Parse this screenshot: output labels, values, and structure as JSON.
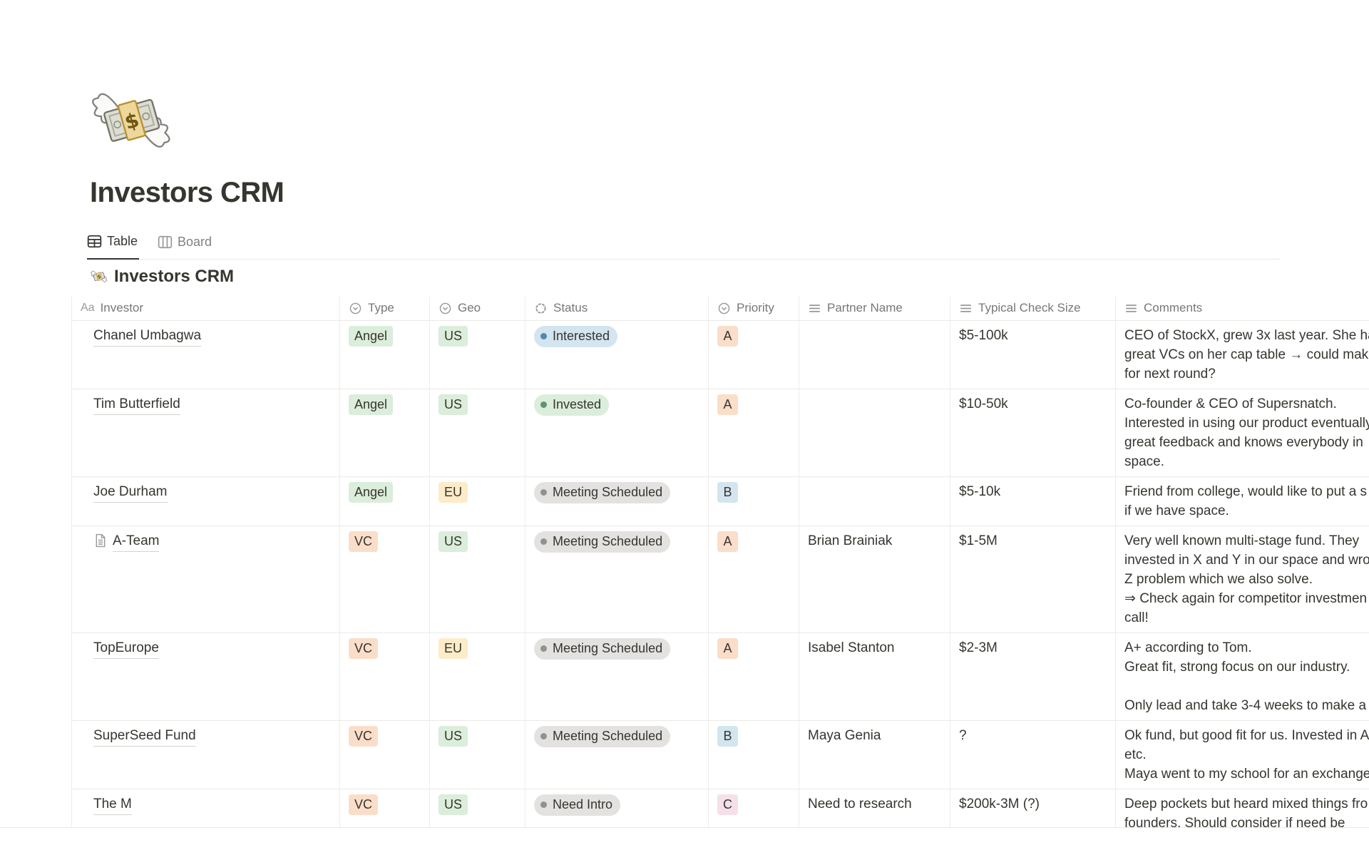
{
  "page": {
    "title": "Investors CRM",
    "icon": "money-with-wings",
    "tabs": [
      {
        "label": "Table",
        "active": true
      },
      {
        "label": "Board",
        "active": false
      }
    ]
  },
  "database": {
    "title": "Investors CRM",
    "columns": [
      {
        "id": "investor",
        "label": "Investor",
        "icon": "text-format-aa-icon"
      },
      {
        "id": "type",
        "label": "Type",
        "icon": "select-icon"
      },
      {
        "id": "geo",
        "label": "Geo",
        "icon": "select-icon"
      },
      {
        "id": "status",
        "label": "Status",
        "icon": "status-icon"
      },
      {
        "id": "priority",
        "label": "Priority",
        "icon": "select-icon"
      },
      {
        "id": "partner",
        "label": "Partner Name",
        "icon": "text-icon"
      },
      {
        "id": "check",
        "label": "Typical Check Size",
        "icon": "text-icon"
      },
      {
        "id": "comments",
        "label": "Comments",
        "icon": "text-icon"
      }
    ],
    "rows": [
      {
        "investor": "Chanel Umbagwa",
        "page_icon": false,
        "type": {
          "label": "Angel",
          "color": "green"
        },
        "geo": {
          "label": "US",
          "color": "green"
        },
        "status": {
          "label": "Interested",
          "color": "blue"
        },
        "priority": {
          "label": "A",
          "color": "orange"
        },
        "partner": "",
        "check": "$5-100k",
        "comments": "CEO of StockX, grew 3x last year. She ha\ngreat VCs on her cap table → could make\nfor next round?"
      },
      {
        "investor": "Tim Butterfield",
        "page_icon": false,
        "type": {
          "label": "Angel",
          "color": "green"
        },
        "geo": {
          "label": "US",
          "color": "green"
        },
        "status": {
          "label": "Invested",
          "color": "green"
        },
        "priority": {
          "label": "A",
          "color": "orange"
        },
        "partner": "",
        "check": "$10-50k",
        "comments": "Co-founder & CEO of Supersnatch.\nInterested in using our product eventually\ngreat feedback and knows everybody in\nspace."
      },
      {
        "investor": "Joe Durham",
        "page_icon": false,
        "type": {
          "label": "Angel",
          "color": "green"
        },
        "geo": {
          "label": "EU",
          "color": "yellow"
        },
        "status": {
          "label": "Meeting Scheduled",
          "color": "gray"
        },
        "priority": {
          "label": "B",
          "color": "blue"
        },
        "partner": "",
        "check": "$5-10k",
        "comments": "Friend from college, would like to put a s\nif we have space."
      },
      {
        "investor": "A-Team",
        "page_icon": true,
        "type": {
          "label": "VC",
          "color": "orange"
        },
        "geo": {
          "label": "US",
          "color": "green"
        },
        "status": {
          "label": "Meeting Scheduled",
          "color": "gray"
        },
        "priority": {
          "label": "A",
          "color": "orange"
        },
        "partner": "Brian Brainiak",
        "check": "$1-5M",
        "comments": "Very well known multi-stage fund. They\ninvested in X and Y in our space and wro\nZ problem which we also solve.\n⇒ Check again for competitor investmen\ncall!"
      },
      {
        "investor": "TopEurope",
        "page_icon": false,
        "type": {
          "label": "VC",
          "color": "orange"
        },
        "geo": {
          "label": "EU",
          "color": "yellow"
        },
        "status": {
          "label": "Meeting Scheduled",
          "color": "gray"
        },
        "priority": {
          "label": "A",
          "color": "orange"
        },
        "partner": "Isabel Stanton",
        "check": "$2-3M",
        "comments": "A+ according to Tom.\nGreat fit, strong focus on our industry.\n\nOnly lead and take 3-4 weeks to make a"
      },
      {
        "investor": "SuperSeed Fund",
        "page_icon": false,
        "type": {
          "label": "VC",
          "color": "orange"
        },
        "geo": {
          "label": "US",
          "color": "green"
        },
        "status": {
          "label": "Meeting Scheduled",
          "color": "gray"
        },
        "priority": {
          "label": "B",
          "color": "blue"
        },
        "partner": "Maya Genia",
        "check": "?",
        "comments": "Ok fund, but good fit for us. Invested in A\netc.\nMaya went to my school for an exchange"
      },
      {
        "investor": "The M",
        "page_icon": false,
        "type": {
          "label": "VC",
          "color": "orange"
        },
        "geo": {
          "label": "US",
          "color": "green"
        },
        "status": {
          "label": "Need Intro",
          "color": "gray"
        },
        "priority": {
          "label": "C",
          "color": "pink"
        },
        "partner": "Need to research",
        "check": "$200k-3M (?)",
        "comments": "Deep pockets but heard mixed things fro\nfounders. Should consider if need be"
      }
    ]
  },
  "colors": {
    "text": "#37352F",
    "muted_text": "#787774",
    "border": "#E9E9E7",
    "tab_active_underline": "#37352F",
    "badge_bg": {
      "green": "#DBEDDB",
      "orange": "#FADEC9",
      "yellow": "#FDECC8",
      "blue": "#D3E5EF",
      "pink": "#F5E0E9",
      "gray": "#E3E2E0"
    },
    "status_dot": {
      "blue": "#4E89AE",
      "green": "#5F9471",
      "gray": "#91918E"
    }
  }
}
